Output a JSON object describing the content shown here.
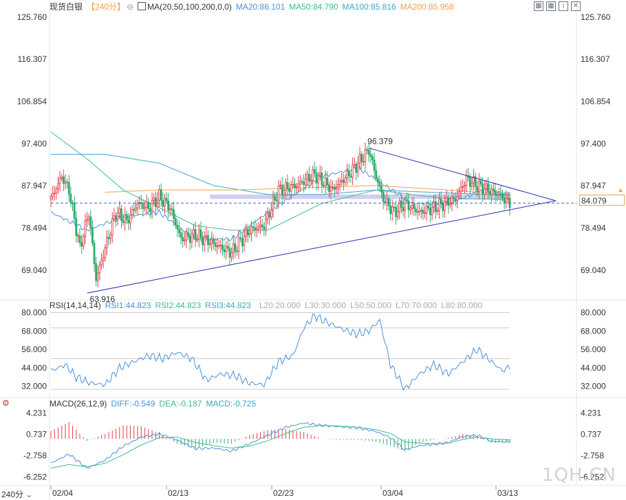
{
  "header": {
    "instrument": "现货白银",
    "period_tag": "【240分】",
    "settings_glyph": "⊖",
    "ma_label": "MA(20,50,100,200,0,0)",
    "ma_values": [
      {
        "text": "MA20:86.101",
        "color": "#4a90d9"
      },
      {
        "text": "MA50:84.790",
        "color": "#3dbb8e"
      },
      {
        "text": "MA100:85.816",
        "color": "#3aa7c9"
      },
      {
        "text": "MA200:85.958",
        "color": "#f0a050"
      }
    ]
  },
  "toolbar": {
    "icons": [
      "grid-icon",
      "grid-icon",
      "expand-icon",
      "close-icon"
    ]
  },
  "colors": {
    "up": "#e0404a",
    "down": "#2faa6b",
    "ma20": "#4a90d9",
    "ma50": "#3dbb8e",
    "ma100": "#3aa7c9",
    "ma200": "#f0a050",
    "trend": "#2a2ab0",
    "dashed": "#3a64c8"
  },
  "current_price": "84.079",
  "period_selector": "240分",
  "watermark": "1QH.CN",
  "rsi": {
    "label": "RSI(14,14,14)",
    "values": [
      {
        "text": "RSI1:44.823",
        "color": "#4a90d9"
      },
      {
        "text": "RSI2:44.823",
        "color": "#3dbb8e"
      },
      {
        "text": "RSI3:44.823",
        "color": "#3aa7c9"
      }
    ],
    "levels": [
      "L20:20.000",
      "L30:30.000",
      "L50:50.000",
      "L70:70.000",
      "L80:80.000"
    ]
  },
  "macd": {
    "label": "MACD(26,12,9)",
    "values": [
      {
        "text": "DIFF:-0.549",
        "color": "#4a90d9"
      },
      {
        "text": "DEA:-0.187",
        "color": "#3dbb8e"
      },
      {
        "text": "MACD:-0.725",
        "color": "#3aa7c9"
      }
    ]
  },
  "chart_data": [
    {
      "type": "candlestick",
      "title": "现货白银【240分】",
      "y_ticks": [
        "125.760",
        "116.307",
        "106.854",
        "97.400",
        "87.947",
        "78.494",
        "69.040"
      ],
      "ylim": [
        63.0,
        126.5
      ],
      "x_ticks": [
        "02/04",
        "02/13",
        "02/23",
        "03/04",
        "03/13"
      ],
      "annotations": {
        "high": "96.379",
        "low": "63.916",
        "last": "84.079"
      },
      "close_path": [
        [
          0,
          85.0
        ],
        [
          6,
          90.0
        ],
        [
          10,
          87.0
        ],
        [
          16,
          74.0
        ],
        [
          21,
          82.0
        ],
        [
          25,
          67.0
        ],
        [
          30,
          74.0
        ],
        [
          36,
          82.0
        ],
        [
          42,
          80.0
        ],
        [
          48,
          84.0
        ],
        [
          54,
          83.0
        ],
        [
          60,
          85.5
        ],
        [
          66,
          83.0
        ],
        [
          72,
          76.0
        ],
        [
          80,
          77.0
        ],
        [
          90,
          75.0
        ],
        [
          100,
          73.0
        ],
        [
          110,
          78.0
        ],
        [
          118,
          79.0
        ],
        [
          126,
          87.0
        ],
        [
          136,
          88.0
        ],
        [
          146,
          90.5
        ],
        [
          156,
          87.0
        ],
        [
          166,
          91.0
        ],
        [
          172,
          94.0
        ],
        [
          176,
          96.0
        ],
        [
          180,
          90.0
        ],
        [
          184,
          85.0
        ],
        [
          190,
          82.0
        ],
        [
          196,
          84.0
        ],
        [
          204,
          82.0
        ],
        [
          212,
          83.0
        ],
        [
          218,
          84.0
        ],
        [
          224,
          85.0
        ],
        [
          230,
          89.5
        ],
        [
          236,
          88.0
        ],
        [
          242,
          87.0
        ],
        [
          248,
          86.0
        ],
        [
          254,
          84.0
        ]
      ],
      "ma_lines": {
        "MA20": [
          [
            0,
            82
          ],
          [
            20,
            78
          ],
          [
            40,
            81
          ],
          [
            60,
            82
          ],
          [
            80,
            76
          ],
          [
            100,
            76
          ],
          [
            120,
            82
          ],
          [
            150,
            90
          ],
          [
            170,
            92
          ],
          [
            185,
            88
          ],
          [
            200,
            84
          ],
          [
            220,
            84
          ],
          [
            240,
            87
          ],
          [
            254,
            86.1
          ]
        ],
        "MA50": [
          [
            0,
            100
          ],
          [
            20,
            94
          ],
          [
            40,
            87
          ],
          [
            60,
            83
          ],
          [
            80,
            79
          ],
          [
            100,
            78
          ],
          [
            120,
            78
          ],
          [
            150,
            84
          ],
          [
            180,
            87
          ],
          [
            200,
            86
          ],
          [
            220,
            85
          ],
          [
            240,
            85
          ],
          [
            254,
            84.8
          ]
        ],
        "MA100": [
          [
            0,
            95
          ],
          [
            30,
            95
          ],
          [
            60,
            93
          ],
          [
            90,
            88
          ],
          [
            120,
            86
          ],
          [
            150,
            86
          ],
          [
            180,
            87
          ],
          [
            210,
            86.5
          ],
          [
            254,
            85.8
          ]
        ],
        "MA200": [
          [
            30,
            86.5
          ],
          [
            60,
            87
          ],
          [
            100,
            87
          ],
          [
            140,
            87.5
          ],
          [
            180,
            88
          ],
          [
            220,
            87
          ],
          [
            254,
            86
          ]
        ]
      },
      "trendlines": [
        {
          "from": [
            20,
            63.9
          ],
          "to": [
            254,
            84.1
          ],
          "extend_to_apex": true
        },
        {
          "from": [
            176,
            96.4
          ],
          "to": [
            254,
            86.6
          ],
          "extend_to_apex": true
        }
      ],
      "band": [
        85.0,
        86.0
      ]
    },
    {
      "type": "line",
      "title": "RSI(14,14,14)",
      "y_ticks": [
        "80.000",
        "68.000",
        "56.000",
        "44.000",
        "32.000"
      ],
      "ylim": [
        26,
        82
      ],
      "levels": [
        20,
        30,
        50,
        70,
        80
      ],
      "series": [
        {
          "name": "RSI1",
          "values_path": [
            [
              0,
              42
            ],
            [
              8,
              46
            ],
            [
              14,
              38
            ],
            [
              22,
              34
            ],
            [
              30,
              33
            ],
            [
              38,
              44
            ],
            [
              46,
              48
            ],
            [
              54,
              52
            ],
            [
              62,
              50
            ],
            [
              70,
              54
            ],
            [
              78,
              50
            ],
            [
              86,
              36
            ],
            [
              94,
              40
            ],
            [
              102,
              39
            ],
            [
              110,
              34
            ],
            [
              118,
              33
            ],
            [
              126,
              48
            ],
            [
              134,
              52
            ],
            [
              140,
              70
            ],
            [
              146,
              78
            ],
            [
              152,
              74
            ],
            [
              158,
              71
            ],
            [
              164,
              68
            ],
            [
              170,
              66
            ],
            [
              176,
              68
            ],
            [
              182,
              75
            ],
            [
              188,
              46
            ],
            [
              196,
              30
            ],
            [
              204,
              40
            ],
            [
              212,
              46
            ],
            [
              220,
              40
            ],
            [
              228,
              48
            ],
            [
              236,
              56
            ],
            [
              244,
              48
            ],
            [
              250,
              42
            ],
            [
              254,
              44.8
            ]
          ]
        }
      ]
    },
    {
      "type": "bar+line",
      "title": "MACD(26,12,9)",
      "y_ticks": [
        "4.231",
        "0.737",
        "-2.758",
        "-6.252"
      ],
      "ylim": [
        -7.2,
        5.2
      ],
      "series": [
        {
          "name": "DIFF",
          "values_path": [
            [
              0,
              -4.0
            ],
            [
              10,
              -2.5
            ],
            [
              20,
              -4.8
            ],
            [
              30,
              -3.5
            ],
            [
              40,
              -1.2
            ],
            [
              50,
              0.3
            ],
            [
              60,
              0.8
            ],
            [
              70,
              -0.2
            ],
            [
              80,
              -1.6
            ],
            [
              90,
              -1.5
            ],
            [
              100,
              -2.0
            ],
            [
              110,
              -0.8
            ],
            [
              120,
              0.6
            ],
            [
              130,
              1.9
            ],
            [
              140,
              2.6
            ],
            [
              150,
              2.2
            ],
            [
              160,
              2.0
            ],
            [
              170,
              1.8
            ],
            [
              180,
              1.2
            ],
            [
              188,
              0.2
            ],
            [
              196,
              -1.8
            ],
            [
              204,
              -1.1
            ],
            [
              212,
              -0.9
            ],
            [
              220,
              -0.6
            ],
            [
              228,
              0.4
            ],
            [
              236,
              0.6
            ],
            [
              244,
              -0.4
            ],
            [
              254,
              -0.55
            ]
          ]
        },
        {
          "name": "DEA",
          "values_path": [
            [
              0,
              -4.8
            ],
            [
              10,
              -4.2
            ],
            [
              20,
              -4.6
            ],
            [
              30,
              -4.0
            ],
            [
              40,
              -2.6
            ],
            [
              50,
              -1.0
            ],
            [
              60,
              0.2
            ],
            [
              70,
              0.3
            ],
            [
              80,
              -0.6
            ],
            [
              90,
              -1.1
            ],
            [
              100,
              -1.5
            ],
            [
              110,
              -1.2
            ],
            [
              120,
              -0.3
            ],
            [
              130,
              0.9
            ],
            [
              140,
              1.9
            ],
            [
              150,
              2.2
            ],
            [
              160,
              2.1
            ],
            [
              170,
              1.9
            ],
            [
              180,
              1.5
            ],
            [
              188,
              0.9
            ],
            [
              196,
              -0.5
            ],
            [
              204,
              -0.7
            ],
            [
              212,
              -0.8
            ],
            [
              220,
              -0.7
            ],
            [
              228,
              -0.1
            ],
            [
              236,
              0.3
            ],
            [
              244,
              0.0
            ],
            [
              254,
              -0.19
            ]
          ]
        }
      ]
    }
  ]
}
